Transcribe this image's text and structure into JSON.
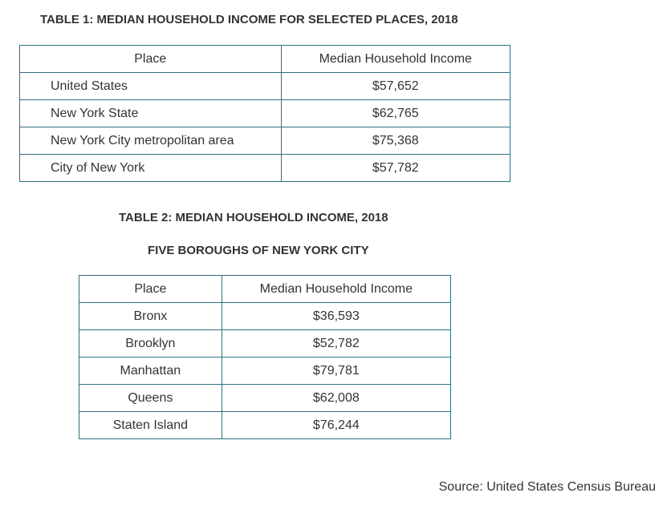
{
  "table1": {
    "title": "TABLE 1: MEDIAN HOUSEHOLD INCOME FOR SELECTED PLACES, 2018",
    "headers": [
      "Place",
      "Median Household Income"
    ],
    "rows": [
      {
        "place": "United States",
        "income": "$57,652"
      },
      {
        "place": "New York State",
        "income": "$62,765"
      },
      {
        "place": "New York City metropolitan area",
        "income": "$75,368"
      },
      {
        "place": "City of New York",
        "income": "$57,782"
      }
    ]
  },
  "table2": {
    "title": "TABLE 2: MEDIAN HOUSEHOLD INCOME, 2018",
    "subtitle": "FIVE BOROUGHS OF NEW YORK CITY",
    "headers": [
      "Place",
      "Median Household Income"
    ],
    "rows": [
      {
        "place": "Bronx",
        "income": "$36,593"
      },
      {
        "place": "Brooklyn",
        "income": "$52,782"
      },
      {
        "place": "Manhattan",
        "income": "$79,781"
      },
      {
        "place": "Queens",
        "income": "$62,008"
      },
      {
        "place": "Staten Island",
        "income": "$76,244"
      }
    ]
  },
  "source": "Source: United States Census Bureau",
  "colors": {
    "border": "#2f6e82",
    "text": "#333333"
  }
}
